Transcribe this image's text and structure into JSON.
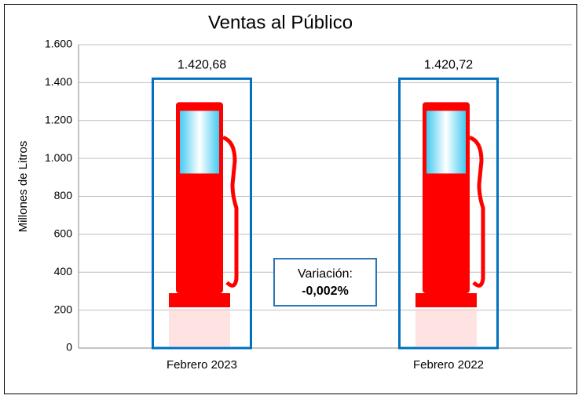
{
  "chart_data": {
    "type": "bar",
    "title": "Ventas al Público",
    "y_label": "Millones de Litros",
    "categories": [
      "Febrero 2023",
      "Febrero 2022"
    ],
    "values": [
      1420.68,
      1420.72
    ],
    "value_labels": [
      "1.420,68",
      "1.420,72"
    ],
    "color": "#0070c0",
    "ylim": [
      0,
      1600
    ],
    "yticks": [
      0,
      200,
      400,
      600,
      800,
      {
        "value": 1000,
        "label": "1.000"
      },
      {
        "value": 1200,
        "label": "1.200"
      },
      {
        "value": 1400,
        "label": "1.400"
      },
      {
        "value": 1600,
        "label": "1.600"
      }
    ],
    "grid": true,
    "annotation": {
      "line1": "Variación:",
      "line2": "-0,002%"
    }
  }
}
